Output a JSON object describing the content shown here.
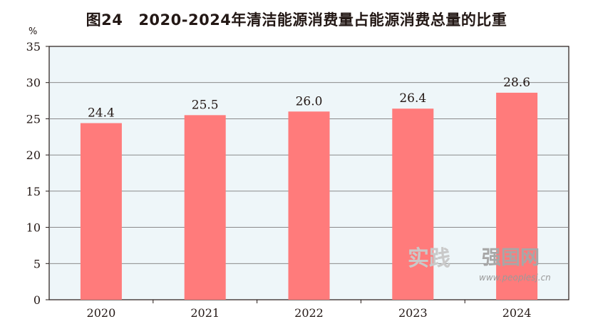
{
  "title": {
    "number": "图24",
    "text": "2020-2024年清洁能源消费量占能源消费总量的比重"
  },
  "chart_data": {
    "type": "bar",
    "title": "2020-2024年清洁能源消费量占能源消费总量的比重",
    "ylabel": "%",
    "xlabel": "",
    "categories": [
      "2020",
      "2021",
      "2022",
      "2023",
      "2024"
    ],
    "values": [
      24.4,
      25.5,
      26.0,
      26.4,
      28.6
    ],
    "value_labels": [
      "24.4",
      "25.5",
      "26.0",
      "26.4",
      "28.6"
    ],
    "ylim": [
      0,
      35
    ],
    "yticks": [
      "0",
      "5",
      "10",
      "15",
      "20",
      "25",
      "30",
      "35"
    ],
    "grid": true,
    "bar_color": "#ff7b7b",
    "plot_background": "#eef6f9",
    "grid_color": "#7b7b7b"
  },
  "watermark": {
    "brand": "实践",
    "name": "强国网",
    "url": "www.peoplesj.cn"
  }
}
